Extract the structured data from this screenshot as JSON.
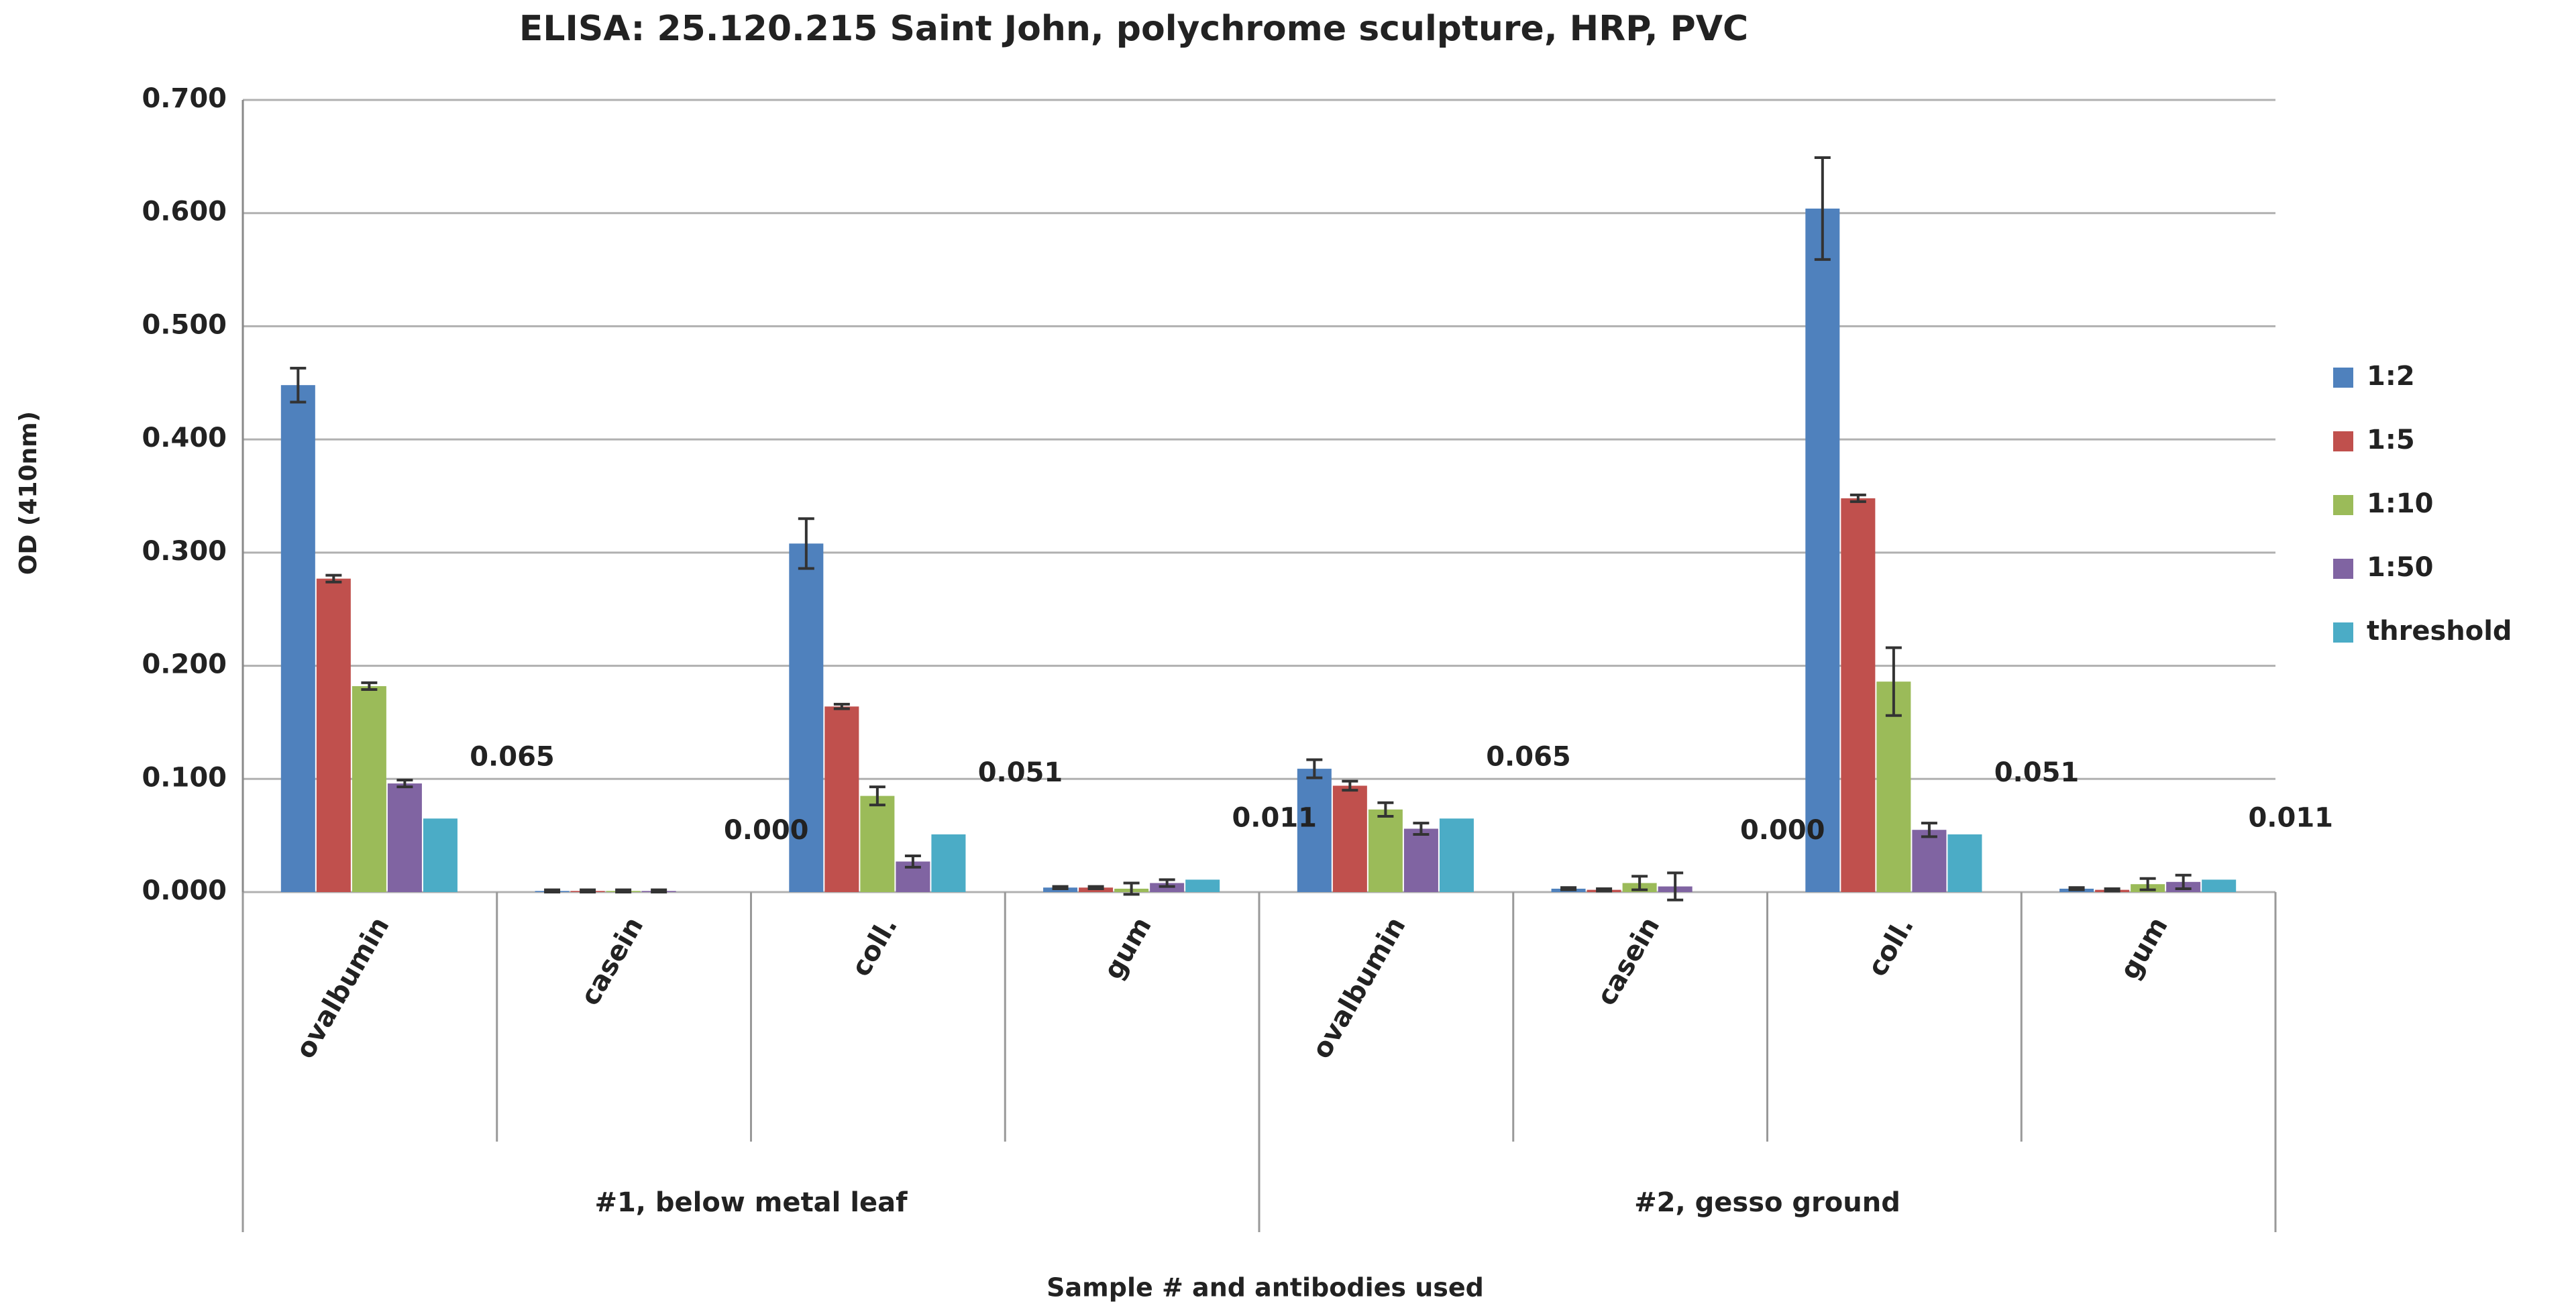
{
  "chart_data": {
    "type": "bar",
    "title": "ELISA: 25.120.215 Saint John, polychrome sculpture, HRP, PVC",
    "y_label": "OD (410nm)",
    "x_label": "Sample # and antibodies used",
    "groups": [
      {
        "label": "#1, below metal leaf",
        "categories": [
          "ovalbumin",
          "casein",
          "coll.",
          "gum"
        ]
      },
      {
        "label": "#2, gesso ground",
        "categories": [
          "ovalbumin",
          "casein",
          "coll.",
          "gum"
        ]
      }
    ],
    "series": [
      {
        "name": "1:2",
        "color": "#4f81bd",
        "values": [
          0.448,
          0.001,
          0.308,
          0.004,
          0.109,
          0.003,
          0.604,
          0.003
        ],
        "errors": [
          0.015,
          0.001,
          0.022,
          0.001,
          0.008,
          0.001,
          0.045,
          0.001
        ]
      },
      {
        "name": "1:5",
        "color": "#c0504d",
        "values": [
          0.277,
          0.001,
          0.164,
          0.004,
          0.094,
          0.002,
          0.348,
          0.002
        ],
        "errors": [
          0.003,
          0.001,
          0.002,
          0.001,
          0.004,
          0.001,
          0.003,
          0.001
        ]
      },
      {
        "name": "1:10",
        "color": "#9bbb59",
        "values": [
          0.182,
          0.001,
          0.085,
          0.003,
          0.073,
          0.008,
          0.186,
          0.007
        ],
        "errors": [
          0.003,
          0.001,
          0.008,
          0.005,
          0.006,
          0.006,
          0.03,
          0.005
        ]
      },
      {
        "name": "1:50",
        "color": "#8064a2",
        "values": [
          0.096,
          0.001,
          0.027,
          0.008,
          0.056,
          0.005,
          0.055,
          0.009
        ],
        "errors": [
          0.003,
          0.001,
          0.005,
          0.003,
          0.005,
          0.012,
          0.006,
          0.006
        ]
      },
      {
        "name": "threshold",
        "color": "#4bacc6",
        "values": [
          0.065,
          0.0,
          0.051,
          0.011,
          0.065,
          0.0,
          0.051,
          0.011
        ],
        "value_labels": [
          "0.065",
          "0.000",
          "0.051",
          "0.011",
          "0.065",
          "0.000",
          "0.051",
          "0.011"
        ]
      }
    ],
    "ylim": [
      0,
      0.7
    ],
    "yticks": [
      {
        "value": 0,
        "label": "0.000"
      },
      {
        "value": 0.1,
        "label": "0.100"
      },
      {
        "value": 0.2,
        "label": "0.200"
      },
      {
        "value": 0.3,
        "label": "0.300"
      },
      {
        "value": 0.4,
        "label": "0.400"
      },
      {
        "value": 0.5,
        "label": "0.500"
      },
      {
        "value": 0.6,
        "label": "0.600"
      },
      {
        "value": 0.7,
        "label": "0.700"
      }
    ],
    "grid": true,
    "legend": "right"
  }
}
